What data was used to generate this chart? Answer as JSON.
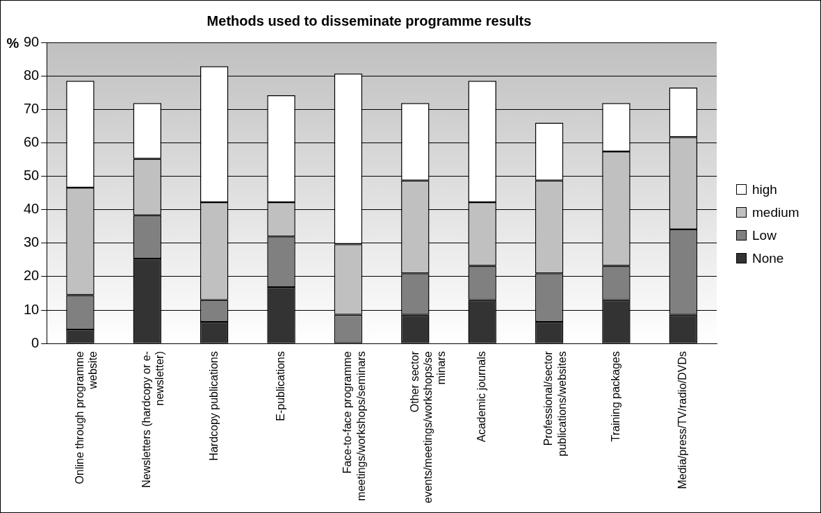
{
  "chart_data": {
    "type": "bar",
    "title": "Methods used to disseminate programme results",
    "ylabel": "%",
    "categories": [
      "Online through programme\nwebsite",
      "Newsletters (hardcopy or e-\nnewsletter)",
      "Hardcopy publications",
      "E-publications",
      "Face-to-face programme\nmeetings/workshops/seminars",
      "Other sector\nevents/meetings/workshops/se\nminars",
      "Academic journals",
      "Professional/sector\npublications/websites",
      "Training packages",
      "Media/press/TV/radio/DVDs"
    ],
    "stacked": true,
    "series": [
      {
        "name": "None",
        "color": "#333333",
        "values": [
          4.2,
          25.4,
          6.5,
          16.9,
          0,
          8.6,
          13.0,
          6.5,
          13.0,
          8.6
        ]
      },
      {
        "name": "Low",
        "color": "#808080",
        "values": [
          10.3,
          12.9,
          6.5,
          15.1,
          8.6,
          12.4,
          10.2,
          14.5,
          10.2,
          25.5
        ]
      },
      {
        "name": "medium",
        "color": "#c0c0c0",
        "values": [
          32.1,
          16.9,
          29.2,
          10.2,
          21.1,
          27.7,
          19.0,
          27.7,
          34.2,
          27.6
        ]
      },
      {
        "name": "high",
        "color": "#ffffff",
        "values": [
          31.9,
          16.7,
          40.7,
          32.0,
          51.0,
          23.2,
          36.3,
          17.3,
          14.5,
          14.8
        ]
      }
    ],
    "ylim": [
      0,
      90
    ],
    "yticks": [
      0,
      10,
      20,
      30,
      40,
      50,
      60,
      70,
      80,
      90
    ],
    "grid": "y",
    "legend": "right"
  }
}
